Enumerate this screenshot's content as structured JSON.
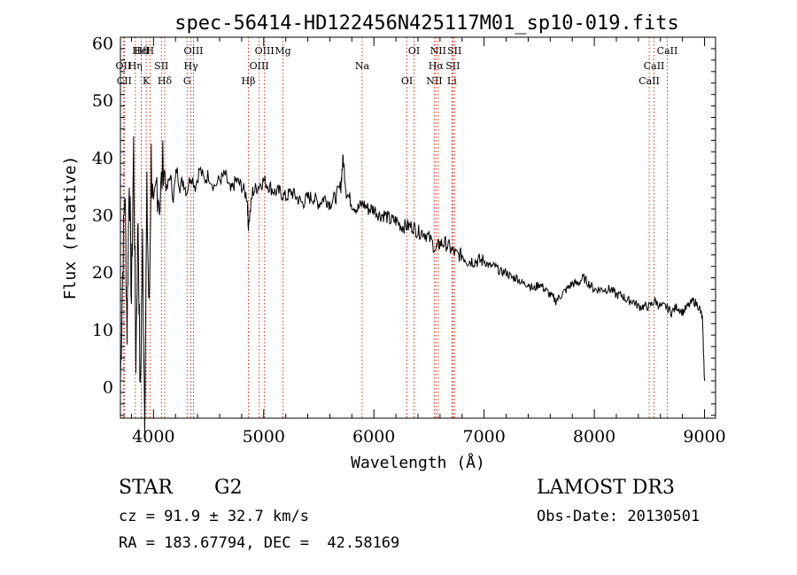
{
  "colors": {
    "axis": "#000000",
    "spectrum": "#000000",
    "lines": "#cc2200",
    "background": "#ffffff"
  },
  "info": {
    "object_class": "STAR",
    "subclass": "G2",
    "survey": "LAMOST DR3",
    "velocity": "cz = 91.9 ± 32.7 km/s",
    "obs_date": "Obs-Date: 20130501",
    "coords": "RA = 183.67794, DEC =  42.58169"
  },
  "chart_data": {
    "type": "line",
    "title": "spec-56414-HD122456N425117M01_sp10-019.fits",
    "xlabel": "Wavelength (Å)",
    "ylabel": "Flux (relative)",
    "xlim": [
      3700,
      9100
    ],
    "ylim": [
      -5.5,
      61
    ],
    "xticks": [
      4000,
      5000,
      6000,
      7000,
      8000,
      9000
    ],
    "yticks": [
      0,
      10,
      20,
      30,
      40,
      50,
      60
    ],
    "series": [
      {
        "name": "spectrum",
        "x": [
          3700,
          3720,
          3740,
          3760,
          3780,
          3800,
          3820,
          3840,
          3860,
          3880,
          3900,
          3920,
          3940,
          3960,
          3980,
          4000,
          4030,
          4060,
          4090,
          4120,
          4150,
          4180,
          4210,
          4240,
          4270,
          4300,
          4340,
          4380,
          4420,
          4460,
          4500,
          4550,
          4600,
          4650,
          4700,
          4750,
          4800,
          4850,
          4861,
          4900,
          4950,
          5000,
          5050,
          5100,
          5150,
          5200,
          5250,
          5300,
          5350,
          5400,
          5450,
          5500,
          5550,
          5600,
          5650,
          5700,
          5720,
          5750,
          5800,
          5850,
          5900,
          5950,
          6000,
          6050,
          6100,
          6150,
          6200,
          6250,
          6300,
          6350,
          6400,
          6450,
          6500,
          6563,
          6600,
          6650,
          6700,
          6750,
          6800,
          6850,
          6900,
          6950,
          7000,
          7050,
          7100,
          7150,
          7200,
          7250,
          7300,
          7350,
          7400,
          7450,
          7500,
          7550,
          7600,
          7650,
          7700,
          7750,
          7800,
          7850,
          7900,
          7950,
          8000,
          8050,
          8100,
          8150,
          8200,
          8250,
          8300,
          8350,
          8400,
          8450,
          8500,
          8550,
          8600,
          8650,
          8700,
          8750,
          8800,
          8850,
          8900,
          8950,
          8980,
          9000
        ],
        "y": [
          1,
          20,
          35,
          10,
          38,
          15,
          42,
          5,
          30,
          -3,
          25,
          -4,
          33,
          12,
          40,
          28,
          36,
          32,
          40,
          34,
          37,
          33,
          38,
          35,
          36,
          34,
          37,
          35,
          38,
          36,
          37,
          35,
          36,
          37,
          34,
          36,
          35,
          33,
          28,
          34,
          35,
          36,
          35,
          34,
          34,
          33,
          34,
          33,
          32,
          33,
          33,
          32,
          33,
          32,
          33,
          35,
          40,
          34,
          32,
          31,
          32,
          31,
          31,
          30,
          30,
          29,
          29,
          28,
          28,
          28,
          27,
          27,
          26,
          24,
          25,
          25,
          24,
          23,
          23,
          22,
          22,
          22,
          22,
          21,
          21,
          20,
          20,
          19,
          19,
          18,
          18,
          17,
          18,
          17,
          16,
          15,
          16,
          17,
          18,
          18,
          19,
          18,
          17,
          17,
          17,
          17,
          16,
          16,
          15,
          15,
          14,
          14,
          14,
          15,
          14,
          14,
          13,
          14,
          13,
          14,
          15,
          14,
          12,
          1
        ]
      }
    ],
    "spectral_lines": [
      {
        "label": "Hδ",
        "wavelength": 3889
      },
      {
        "label": "OII",
        "wavelength": 3727
      },
      {
        "label": "CII",
        "wavelength": 3735
      },
      {
        "label": "HeI",
        "wavelength": 3889
      },
      {
        "label": "Hη",
        "wavelength": 3835
      },
      {
        "label": "K",
        "wavelength": 3934
      },
      {
        "label": "H",
        "wavelength": 3968
      },
      {
        "label": "SII",
        "wavelength": 4072
      },
      {
        "label": "Hδ",
        "wavelength": 4102
      },
      {
        "label": "OIII",
        "wavelength": 4363
      },
      {
        "label": "Hγ",
        "wavelength": 4340
      },
      {
        "label": "G",
        "wavelength": 4305
      },
      {
        "label": "OIII",
        "wavelength": 5007
      },
      {
        "label": "OIII",
        "wavelength": 4959
      },
      {
        "label": "Hβ",
        "wavelength": 4861
      },
      {
        "label": "Mg",
        "wavelength": 5175
      },
      {
        "label": "Na",
        "wavelength": 5893
      },
      {
        "label": "OI",
        "wavelength": 6300
      },
      {
        "label": "OI",
        "wavelength": 6364
      },
      {
        "label": "Hα",
        "wavelength": 6563
      },
      {
        "label": "NII",
        "wavelength": 6548
      },
      {
        "label": "NII",
        "wavelength": 6583
      },
      {
        "label": "SII",
        "wavelength": 6716
      },
      {
        "label": "Li",
        "wavelength": 6708
      },
      {
        "label": "SII",
        "wavelength": 6731
      },
      {
        "label": "CaII",
        "wavelength": 8542
      },
      {
        "label": "CaII",
        "wavelength": 8498
      },
      {
        "label": "CaII",
        "wavelength": 8662
      }
    ]
  }
}
